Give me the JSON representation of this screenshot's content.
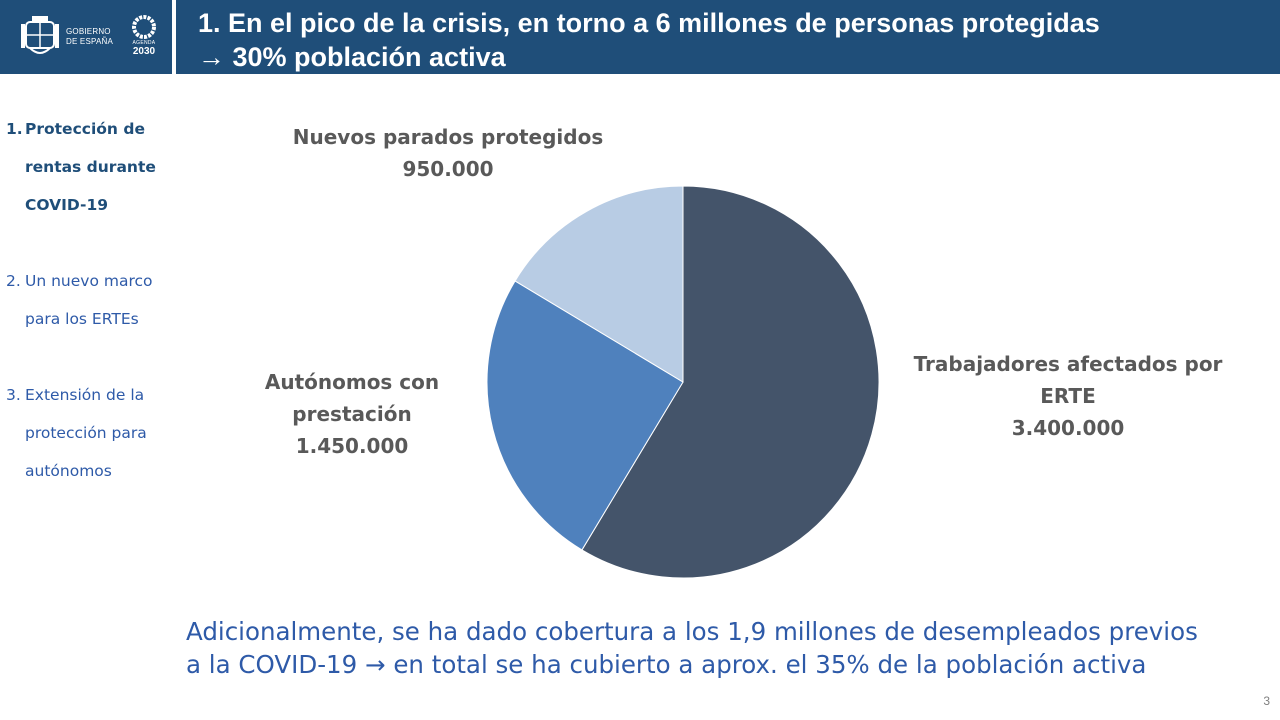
{
  "header": {
    "gobierno_lines": [
      "GOBIERNO",
      "DE ESPAÑA"
    ],
    "agenda_label": "AGENDA",
    "agenda_year": "2030",
    "title_line1": "1. En el pico de la crisis, en torno a 6 millones de personas protegidas",
    "title_line2": "→ 30% población activa",
    "bar_color": "#1f4e79"
  },
  "nav": {
    "items": [
      {
        "num": "1.",
        "lines": [
          "Protección de",
          "rentas durante",
          "COVID-19"
        ],
        "active": true
      },
      {
        "num": "2.",
        "lines": [
          "Un nuevo marco",
          "para los ERTEs"
        ],
        "active": false
      },
      {
        "num": "3.",
        "lines": [
          "Extensión de la",
          "protección para",
          "autónomos"
        ],
        "active": false
      }
    ]
  },
  "chart_data": {
    "type": "pie",
    "slices": [
      {
        "label": "Trabajadores afectados por ERTE",
        "display_lines": [
          "Trabajadores afectados por",
          "ERTE"
        ],
        "value": 3400000,
        "value_label": "3.400.000",
        "color": "#44546a"
      },
      {
        "label": "Autónomos con prestación",
        "display_lines": [
          "Autónomos con",
          "prestación"
        ],
        "value": 1450000,
        "value_label": "1.450.000",
        "color": "#4f81bd"
      },
      {
        "label": "Nuevos parados protegidos",
        "display_lines": [
          "Nuevos parados protegidos"
        ],
        "value": 950000,
        "value_label": "950.000",
        "color": "#b8cce4"
      }
    ]
  },
  "footnote": {
    "line1": "Adicionalmente, se ha dado cobertura a los 1,9 millones de desempleados previos",
    "line2": "a la COVID-19 → en total se ha cubierto a aprox. el 35% de la población activa"
  },
  "page_number": "3"
}
